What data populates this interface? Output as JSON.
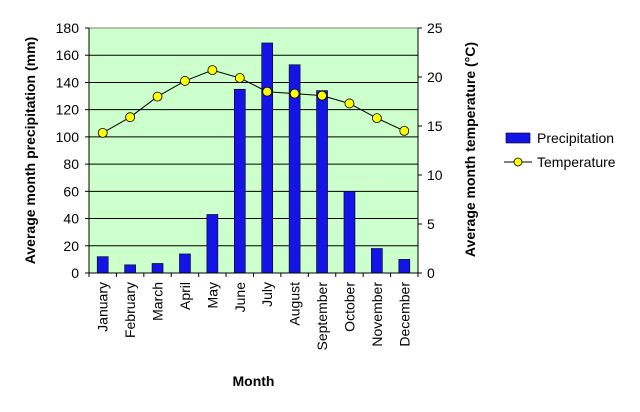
{
  "chart_data": {
    "type": "bar",
    "categories": [
      "January",
      "February",
      "March",
      "April",
      "May",
      "June",
      "July",
      "August",
      "September",
      "October",
      "November",
      "December"
    ],
    "series": [
      {
        "name": "Precipitation",
        "type": "bar",
        "axis": "left",
        "color": "#1414e6",
        "values": [
          12,
          6,
          7,
          14,
          43,
          135,
          169,
          153,
          134,
          60,
          18,
          10
        ]
      },
      {
        "name": "Temperature",
        "type": "line",
        "axis": "right",
        "color": "#ffff00",
        "values": [
          14.3,
          15.9,
          18.0,
          19.6,
          20.7,
          19.9,
          18.5,
          18.3,
          18.1,
          17.3,
          15.8,
          14.5
        ]
      }
    ],
    "title": "",
    "xlabel": "Month",
    "ylabel": "Average month precipitation (mm)",
    "y2label": "Average month temperature (°C)",
    "ylim": [
      0,
      180
    ],
    "yticks": [
      "0",
      "20",
      "40",
      "60",
      "80",
      "100",
      "120",
      "140",
      "160",
      "180"
    ],
    "y2lim": [
      0,
      25
    ],
    "y2ticks": [
      "0",
      "5",
      "10",
      "15",
      "20",
      "25"
    ],
    "grid": true,
    "plot_background": "#ccffcc",
    "legend_position": "right"
  }
}
